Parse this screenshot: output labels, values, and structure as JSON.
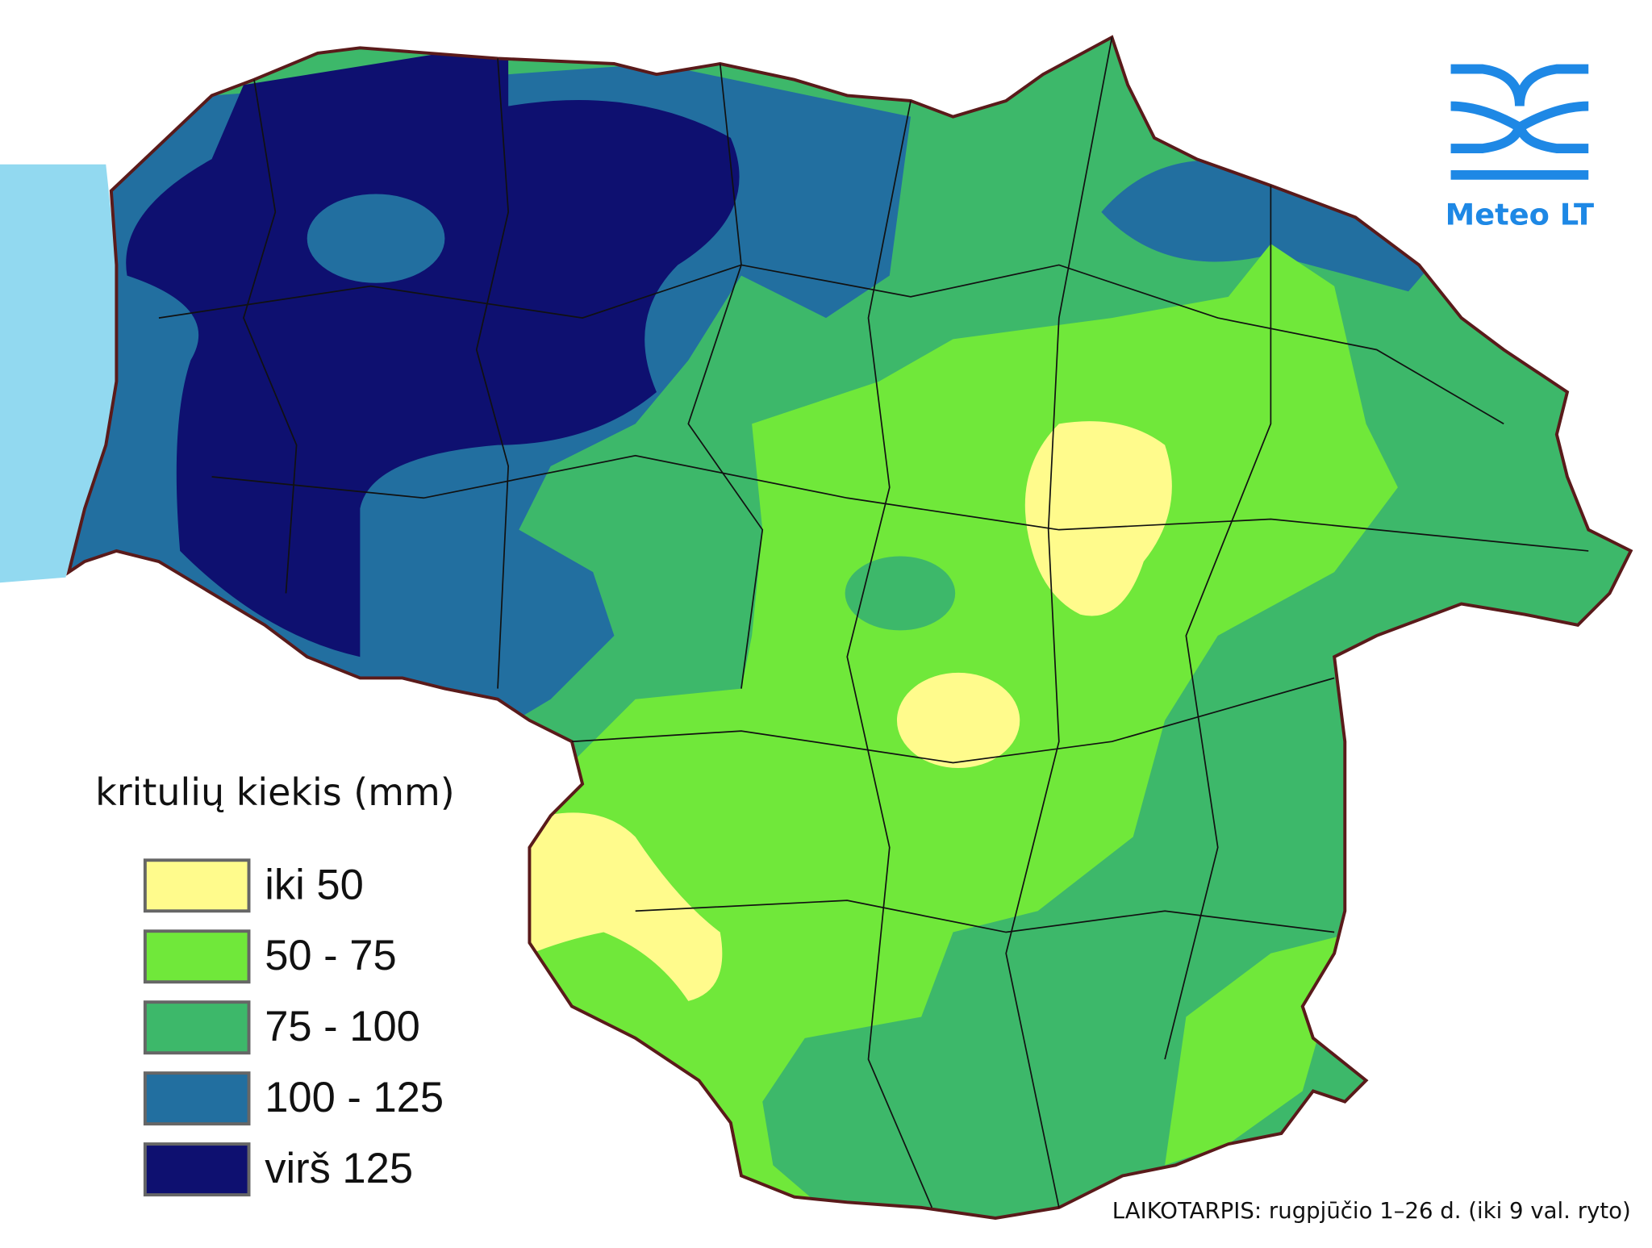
{
  "logo": {
    "text": "Meteo LT"
  },
  "legend": {
    "title": "kritulių kiekis (mm)",
    "items": [
      {
        "label": "iki 50",
        "color": "#fffb8c"
      },
      {
        "label": "50 - 75",
        "color": "#70e83a"
      },
      {
        "label": "75 - 100",
        "color": "#3db86a"
      },
      {
        "label": "100 - 125",
        "color": "#226fa0"
      },
      {
        "label": "virš 125",
        "color": "#0e1070"
      }
    ]
  },
  "footer": "LAIKOTARPIS: rugpjūčio 1–26 d. (iki 9 val. ryto)"
}
